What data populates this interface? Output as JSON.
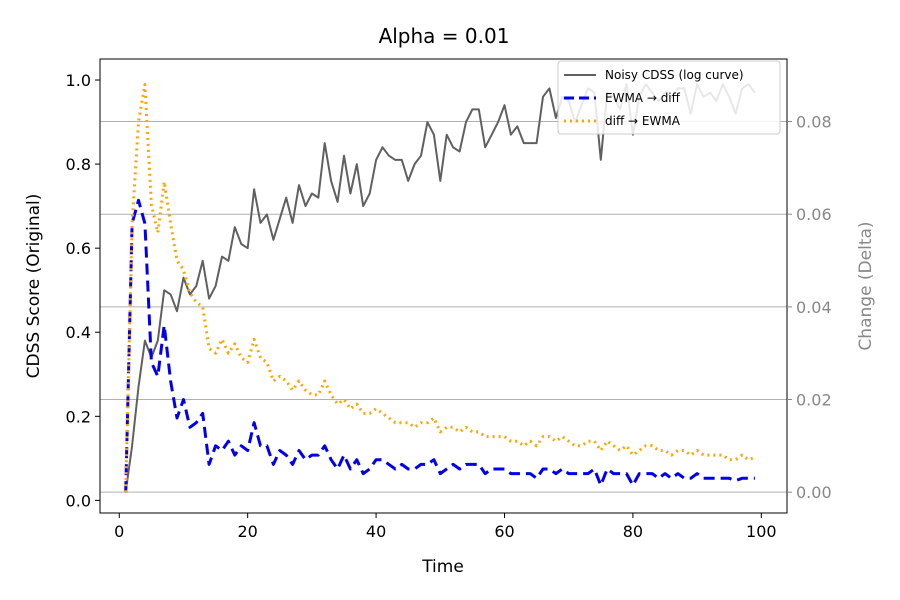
{
  "chart_data": {
    "type": "line",
    "title": "Alpha = 0.01",
    "xlabel": "Time",
    "ylabel": "CDSS Score (Original)",
    "ylabel_right": "Change (Delta)",
    "xlim": [
      -3,
      104
    ],
    "ylim": [
      -0.03,
      1.05
    ],
    "ylim_right": [
      -0.0045,
      0.0935
    ],
    "x_ticks": [
      0,
      20,
      40,
      60,
      80,
      100
    ],
    "y_ticks": [
      0.0,
      0.2,
      0.4,
      0.6,
      0.8,
      1.0
    ],
    "y_ticks_right": [
      0.0,
      0.02,
      0.04,
      0.06,
      0.08
    ],
    "grid": "right-axis horizontal lines",
    "legend_position": "top-right",
    "colors": {
      "noisy": "#606060",
      "ewma_diff": "#0000ee",
      "diff_ewma": "#ffa500",
      "right_axis": "#888888"
    },
    "series": [
      {
        "name": "Noisy CDSS (log curve)",
        "axis": "left",
        "style": "solid",
        "x": [
          1,
          2,
          3,
          4,
          5,
          6,
          7,
          8,
          9,
          10,
          11,
          12,
          13,
          14,
          15,
          16,
          17,
          18,
          19,
          20,
          21,
          22,
          23,
          24,
          25,
          26,
          27,
          28,
          29,
          30,
          31,
          32,
          33,
          34,
          35,
          36,
          37,
          38,
          39,
          40,
          41,
          42,
          43,
          44,
          45,
          46,
          47,
          48,
          49,
          50,
          51,
          52,
          53,
          54,
          55,
          56,
          57,
          58,
          59,
          60,
          61,
          62,
          63,
          64,
          65,
          66,
          67,
          68,
          69,
          70,
          71,
          72,
          73,
          74,
          75,
          76,
          77,
          78,
          79,
          80,
          81,
          82,
          83,
          84,
          85,
          86,
          87,
          88,
          89,
          90,
          91,
          92,
          93,
          94,
          95,
          96,
          97,
          98,
          99
        ],
        "values": [
          0.02,
          0.13,
          0.27,
          0.38,
          0.34,
          0.38,
          0.5,
          0.49,
          0.45,
          0.53,
          0.49,
          0.51,
          0.57,
          0.48,
          0.51,
          0.58,
          0.57,
          0.65,
          0.61,
          0.6,
          0.74,
          0.66,
          0.68,
          0.62,
          0.67,
          0.72,
          0.66,
          0.75,
          0.7,
          0.73,
          0.72,
          0.85,
          0.76,
          0.71,
          0.82,
          0.73,
          0.8,
          0.7,
          0.73,
          0.81,
          0.84,
          0.82,
          0.81,
          0.81,
          0.76,
          0.8,
          0.82,
          0.9,
          0.87,
          0.76,
          0.87,
          0.84,
          0.83,
          0.9,
          0.93,
          0.93,
          0.84,
          0.87,
          0.9,
          0.94,
          0.87,
          0.89,
          0.85,
          0.85,
          0.85,
          0.96,
          0.98,
          0.91,
          0.96,
          0.95,
          0.9,
          0.94,
          0.98,
          0.97,
          0.81,
          0.97,
          0.96,
          0.93,
          0.99,
          0.87,
          0.96,
          0.99,
          0.97,
          0.95,
          0.97,
          0.96,
          0.98,
          0.98,
          0.92,
          0.99,
          0.96,
          0.97,
          0.95,
          0.99,
          0.96,
          0.92,
          0.98,
          0.99,
          0.97
        ]
      },
      {
        "name": "EWMA → diff",
        "axis": "right",
        "style": "dashed",
        "x": [
          1,
          2,
          3,
          4,
          5,
          6,
          7,
          8,
          9,
          10,
          11,
          12,
          13,
          14,
          15,
          16,
          17,
          18,
          19,
          20,
          21,
          22,
          23,
          24,
          25,
          26,
          27,
          28,
          29,
          30,
          31,
          32,
          33,
          34,
          35,
          36,
          37,
          38,
          39,
          40,
          41,
          42,
          43,
          44,
          45,
          46,
          47,
          48,
          49,
          50,
          51,
          52,
          53,
          54,
          55,
          56,
          57,
          58,
          59,
          60,
          61,
          62,
          63,
          64,
          65,
          66,
          67,
          68,
          69,
          70,
          71,
          72,
          73,
          74,
          75,
          76,
          77,
          78,
          79,
          80,
          81,
          82,
          83,
          84,
          85,
          86,
          87,
          88,
          89,
          90,
          91,
          92,
          93,
          94,
          95,
          96,
          97,
          98,
          99
        ],
        "values": [
          0.0,
          0.058,
          0.063,
          0.058,
          0.028,
          0.025,
          0.036,
          0.024,
          0.016,
          0.02,
          0.014,
          0.015,
          0.017,
          0.006,
          0.01,
          0.009,
          0.011,
          0.008,
          0.01,
          0.009,
          0.015,
          0.01,
          0.01,
          0.006,
          0.009,
          0.008,
          0.006,
          0.009,
          0.007,
          0.008,
          0.008,
          0.01,
          0.007,
          0.005,
          0.008,
          0.005,
          0.007,
          0.004,
          0.005,
          0.007,
          0.007,
          0.006,
          0.005,
          0.006,
          0.005,
          0.005,
          0.006,
          0.006,
          0.007,
          0.004,
          0.005,
          0.006,
          0.005,
          0.006,
          0.006,
          0.006,
          0.004,
          0.005,
          0.005,
          0.005,
          0.004,
          0.004,
          0.004,
          0.004,
          0.003,
          0.005,
          0.005,
          0.004,
          0.005,
          0.004,
          0.004,
          0.004,
          0.004,
          0.005,
          0.0015,
          0.005,
          0.004,
          0.004,
          0.004,
          0.0015,
          0.004,
          0.004,
          0.004,
          0.003,
          0.004,
          0.003,
          0.004,
          0.003,
          0.003,
          0.004,
          0.003,
          0.003,
          0.003,
          0.003,
          0.003,
          0.0025,
          0.003,
          0.003,
          0.003
        ]
      },
      {
        "name": "diff → EWMA",
        "axis": "right",
        "style": "dotted",
        "x": [
          1,
          2,
          3,
          4,
          5,
          6,
          7,
          8,
          9,
          10,
          11,
          12,
          13,
          14,
          15,
          16,
          17,
          18,
          19,
          20,
          21,
          22,
          23,
          24,
          25,
          26,
          27,
          28,
          29,
          30,
          31,
          32,
          33,
          34,
          35,
          36,
          37,
          38,
          39,
          40,
          41,
          42,
          43,
          44,
          45,
          46,
          47,
          48,
          49,
          50,
          51,
          52,
          53,
          54,
          55,
          56,
          57,
          58,
          59,
          60,
          61,
          62,
          63,
          64,
          65,
          66,
          67,
          68,
          69,
          70,
          71,
          72,
          73,
          74,
          75,
          76,
          77,
          78,
          79,
          80,
          81,
          82,
          83,
          84,
          85,
          86,
          87,
          88,
          89,
          90,
          91,
          92,
          93,
          94,
          95,
          96,
          97,
          98,
          99
        ],
        "values": [
          0.0,
          0.058,
          0.08,
          0.088,
          0.062,
          0.056,
          0.067,
          0.058,
          0.05,
          0.048,
          0.043,
          0.041,
          0.04,
          0.031,
          0.03,
          0.033,
          0.03,
          0.032,
          0.029,
          0.028,
          0.033,
          0.029,
          0.028,
          0.024,
          0.025,
          0.024,
          0.022,
          0.024,
          0.022,
          0.021,
          0.021,
          0.024,
          0.021,
          0.019,
          0.02,
          0.018,
          0.019,
          0.017,
          0.017,
          0.018,
          0.017,
          0.016,
          0.015,
          0.015,
          0.015,
          0.014,
          0.015,
          0.015,
          0.016,
          0.013,
          0.014,
          0.014,
          0.013,
          0.014,
          0.013,
          0.013,
          0.012,
          0.012,
          0.012,
          0.012,
          0.011,
          0.011,
          0.01,
          0.011,
          0.01,
          0.012,
          0.012,
          0.011,
          0.012,
          0.011,
          0.01,
          0.01,
          0.011,
          0.011,
          0.009,
          0.011,
          0.01,
          0.009,
          0.01,
          0.008,
          0.009,
          0.01,
          0.01,
          0.009,
          0.009,
          0.008,
          0.009,
          0.009,
          0.008,
          0.009,
          0.008,
          0.008,
          0.008,
          0.008,
          0.007,
          0.007,
          0.008,
          0.007,
          0.0075
        ]
      }
    ]
  }
}
